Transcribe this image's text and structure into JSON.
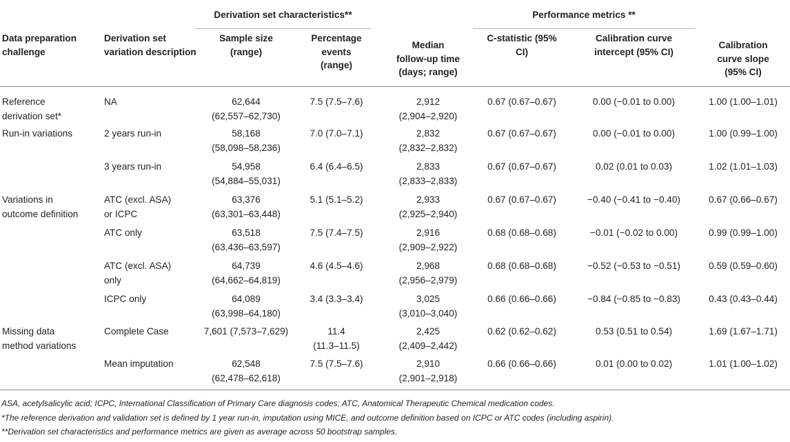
{
  "group_headers": {
    "derivation": "Derivation set characteristics**",
    "performance": "Performance metrics **"
  },
  "columns": [
    [
      "Data preparation",
      "challenge"
    ],
    [
      "Derivation set",
      "variation description"
    ],
    [
      "Sample size",
      "(range)"
    ],
    [
      "Percentage",
      "events",
      "(range)"
    ],
    [
      "Median",
      "follow-up time",
      "(days; range)"
    ],
    [
      "C-statistic (95%",
      "CI)"
    ],
    [
      "Calibration curve",
      "intercept (95% CI)"
    ],
    [
      "Calibration",
      "curve slope",
      "(95% CI)"
    ]
  ],
  "rows": [
    {
      "challenge": [
        "Reference",
        "derivation set*"
      ],
      "variation": [
        "NA"
      ],
      "sample": [
        "62,644",
        "(62,557–62,730)"
      ],
      "events": [
        "7.5 (7.5–7.6)"
      ],
      "followup": [
        "2,912",
        "(2,904–2,920)"
      ],
      "cstat": "0.67 (0.67–0.67)",
      "intercept": "0.00 (−0.01 to 0.00)",
      "slope": "1.00 (1.00–1.01)"
    },
    {
      "challenge": [
        "Run-in variations"
      ],
      "variation": [
        "2 years run-in"
      ],
      "sample": [
        "58,168",
        "(58,098–58,236)"
      ],
      "events": [
        "7.0 (7.0–7.1)"
      ],
      "followup": [
        "2,832",
        "(2,832–2,832)"
      ],
      "cstat": "0.67 (0.67–0.67)",
      "intercept": "0.00 (−0.01 to 0.00)",
      "slope": "1.00 (0.99–1.00)"
    },
    {
      "challenge": [],
      "variation": [
        "3 years run-in"
      ],
      "sample": [
        "54,958",
        "(54,884–55,031)"
      ],
      "events": [
        "6.4 (6.4–6.5)"
      ],
      "followup": [
        "2,833",
        "(2,833–2,833)"
      ],
      "cstat": "0.67 (0.67–0.67)",
      "intercept": "0.02 (0.01 to 0.03)",
      "slope": "1.02 (1.01–1.03)"
    },
    {
      "challenge": [
        "Variations in",
        "outcome definition"
      ],
      "variation": [
        "ATC (excl. ASA)",
        "or ICPC"
      ],
      "sample": [
        "63,376",
        "(63,301–63,448)"
      ],
      "events": [
        "5.1 (5.1–5.2)"
      ],
      "followup": [
        "2,933",
        "(2,925–2,940)"
      ],
      "cstat": "0.67 (0.67–0.67)",
      "intercept": "−0.40 (−0.41 to −0.40)",
      "slope": "0.67 (0.66–0.67)"
    },
    {
      "challenge": [],
      "variation": [
        "ATC only"
      ],
      "sample": [
        "63,518",
        "(63,436–63,597)"
      ],
      "events": [
        "7.5 (7.4–7.5)"
      ],
      "followup": [
        "2,916",
        "(2,909–2,922)"
      ],
      "cstat": "0.68 (0.68–0.68)",
      "intercept": "−0.01 (−0.02 to 0.00)",
      "slope": "0.99 (0.99–1.00)"
    },
    {
      "challenge": [],
      "variation": [
        "ATC (excl. ASA)",
        "only"
      ],
      "sample": [
        "64,739",
        "(64,662–64,819)"
      ],
      "events": [
        "4.6 (4.5–4.6)"
      ],
      "followup": [
        "2,968",
        "(2,956–2,979)"
      ],
      "cstat": "0.68 (0.68–0.68)",
      "intercept": "−0.52 (−0.53 to −0.51)",
      "slope": "0.59 (0.59–0.60)"
    },
    {
      "challenge": [],
      "variation": [
        "ICPC only"
      ],
      "sample": [
        "64,089",
        "(63,998–64,180)"
      ],
      "events": [
        "3.4 (3.3–3.4)"
      ],
      "followup": [
        "3,025",
        "(3,010–3,040)"
      ],
      "cstat": "0.66 (0.66–0.66)",
      "intercept": "−0.84 (−0.85 to −0.83)",
      "slope": "0.43 (0.43–0.44)"
    },
    {
      "challenge": [
        "Missing data",
        "method variations"
      ],
      "variation": [
        "Complete Case"
      ],
      "sample": [
        "7,601 (7,573–7,629)"
      ],
      "events": [
        "11.4",
        "(11.3–11.5)"
      ],
      "followup": [
        "2,425",
        "(2,409–2,442)"
      ],
      "cstat": "0.62 (0.62–0.62)",
      "intercept": "0.53 (0.51 to 0.54)",
      "slope": "1.69 (1.67–1.71)"
    },
    {
      "challenge": [],
      "variation": [
        "Mean imputation"
      ],
      "sample": [
        "62,548",
        "(62,478–62,618)"
      ],
      "events": [
        "7.5 (7.5–7.6)"
      ],
      "followup": [
        "2,910",
        "(2,901–2,918)"
      ],
      "cstat": "0.66 (0.66–0.66)",
      "intercept": "0.01 (0.00 to 0.02)",
      "slope": "1.01 (1.00–1.02)"
    }
  ],
  "footnotes": [
    "ASA, acetylsalicylic acid; ICPC, International Classification of Primary Care diagnosis codes; ATC, Anatomical Therapeutic Chemical medication codes.",
    "*The reference derivation and validation set is defined by 1 year run-in, imputation using MICE, and outcome definition based on ICPC or ATC codes (including aspirin).",
    "**Derivation set characteristics and performance metrics are given as average across 50 bootstrap samples."
  ]
}
